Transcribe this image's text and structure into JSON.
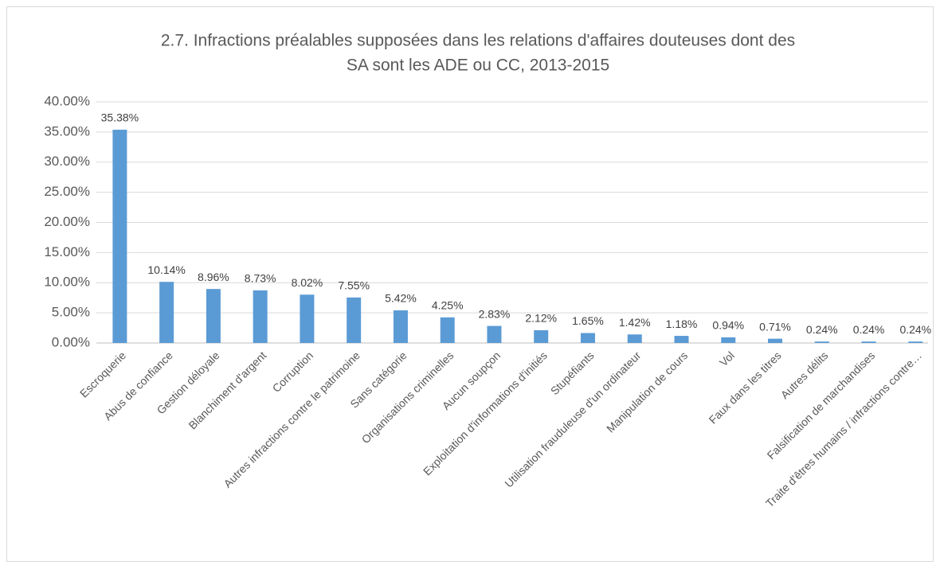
{
  "chart_data": {
    "type": "bar",
    "title": [
      "2.7. Infractions préalables supposées dans les relations d'affaires douteuses dont des",
      "SA sont les ADE ou CC, 2013-2015"
    ],
    "categories": [
      "Escroquerie",
      "Abus de confiance",
      "Gestion déloyale",
      "Blanchiment d'argent",
      "Corruption",
      "Autres infractions contre le patrimoine",
      "Sans catégorie",
      "Organisations criminelles",
      "Aucun soupçon",
      "Exploitation d'informations d'initiés",
      "Stupéfiants",
      "Utilisation frauduleuse d'un ordinateur",
      "Manipulation de cours",
      "Vol",
      "Faux dans les titres",
      "Autres délits",
      "Falsification de marchandises",
      "Traite d'êtres humains / infractions contre…"
    ],
    "values": [
      35.38,
      10.14,
      8.96,
      8.73,
      8.02,
      7.55,
      5.42,
      4.25,
      2.83,
      2.12,
      1.65,
      1.42,
      1.18,
      0.94,
      0.71,
      0.24,
      0.24,
      0.24
    ],
    "value_labels": [
      "35.38%",
      "10.14%",
      "8.96%",
      "8.73%",
      "8.02%",
      "7.55%",
      "5.42%",
      "4.25%",
      "2.83%",
      "2.12%",
      "1.65%",
      "1.42%",
      "1.18%",
      "0.94%",
      "0.71%",
      "0.24%",
      "0.24%",
      "0.24%"
    ],
    "color": "#5b9bd5",
    "ylim": [
      0,
      40
    ],
    "yticks": [
      {
        "value": 0,
        "label": "0.00%"
      },
      {
        "value": 5,
        "label": "5.00%"
      },
      {
        "value": 10,
        "label": "10.00%"
      },
      {
        "value": 15,
        "label": "15.00%"
      },
      {
        "value": 20,
        "label": "20.00%"
      },
      {
        "value": 25,
        "label": "25.00%"
      },
      {
        "value": 30,
        "label": "30.00%"
      },
      {
        "value": 35,
        "label": "35.00%"
      },
      {
        "value": 40,
        "label": "40.00%"
      }
    ],
    "grid": true
  }
}
